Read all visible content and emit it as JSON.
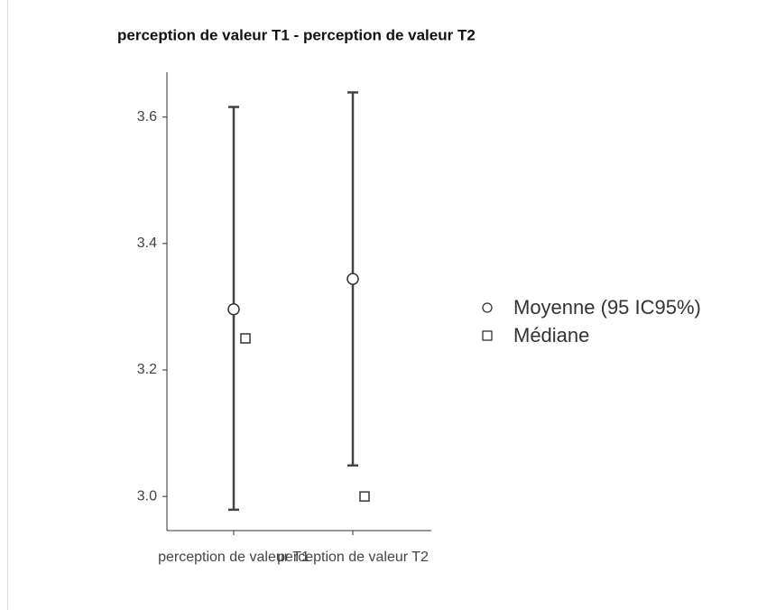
{
  "chart_data": {
    "type": "errorbar",
    "title": "perception de valeur T1 - perception de valeur T2",
    "categories": [
      "perception de valeur T1",
      "perception de valeur T2"
    ],
    "series": [
      {
        "name": "Moyenne (95 IC95%)",
        "marker": "circle",
        "color": "#333333",
        "values": [
          3.296,
          3.344
        ],
        "ci_lower": [
          2.979,
          3.049
        ],
        "ci_upper": [
          3.616,
          3.639
        ]
      },
      {
        "name": "Médiane",
        "marker": "square",
        "color": "#333333",
        "values": [
          3.25,
          3.0
        ]
      }
    ],
    "ylim": [
      2.946,
      3.671
    ],
    "yticks": [
      3.0,
      3.2,
      3.4,
      3.6
    ],
    "ytick_labels": [
      "3.0",
      "3.2",
      "3.4",
      "3.6"
    ],
    "legend": "right",
    "grid": false
  }
}
